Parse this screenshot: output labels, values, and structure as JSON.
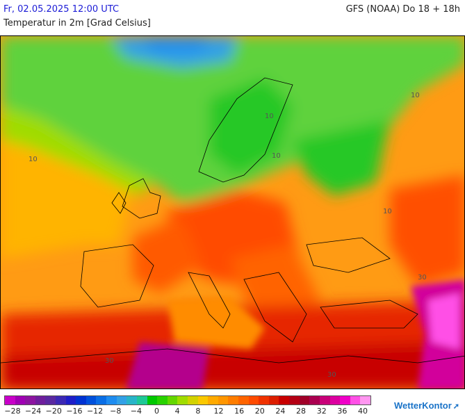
{
  "header": {
    "date": "Fr, 02.05.2025 12:00 UTC",
    "model": "GFS (NOAA) Do 18 + 18h",
    "parameter": "Temperatur in 2m [Grad Celsius]"
  },
  "map": {
    "region": "Europe",
    "contour_labels": [
      "10",
      "10",
      "10",
      "10",
      "10",
      "30",
      "30",
      "30"
    ]
  },
  "legend": {
    "tick_labels": [
      "−28",
      "−24",
      "−20",
      "−16",
      "−12",
      "−8",
      "−4",
      "0",
      "4",
      "8",
      "12",
      "16",
      "20",
      "24",
      "28",
      "32",
      "36",
      "40"
    ],
    "colors": [
      "#c800c8",
      "#a000b4",
      "#8c14a0",
      "#6e1e9c",
      "#5a28a0",
      "#3c28b4",
      "#1e1ec8",
      "#0032d2",
      "#0050dc",
      "#0a6ee6",
      "#1e8cf0",
      "#32a0e6",
      "#28b4c8",
      "#1ec896",
      "#00c800",
      "#28d200",
      "#64d700",
      "#a0dc00",
      "#d2d200",
      "#fac800",
      "#ffaa00",
      "#ff9600",
      "#ff7d00",
      "#ff6400",
      "#ff4b00",
      "#f03200",
      "#dc1e00",
      "#c80000",
      "#b40014",
      "#a00028",
      "#aa0050",
      "#c80078",
      "#dc00a0",
      "#f000c8",
      "#ff50e6",
      "#ff96f0"
    ]
  },
  "branding": {
    "name": "WetterKontor"
  }
}
